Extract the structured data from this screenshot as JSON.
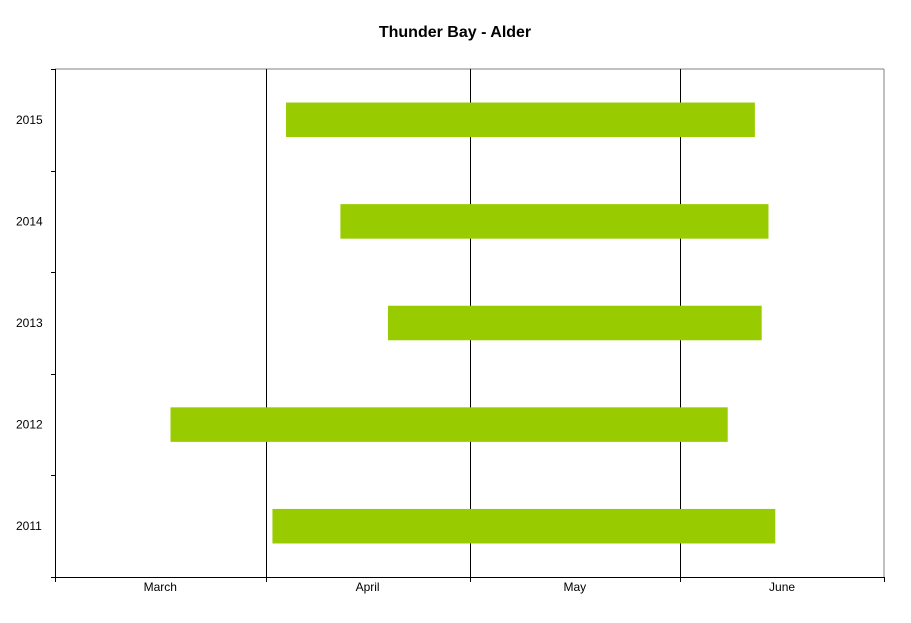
{
  "chart_data": {
    "type": "bar",
    "orientation": "horizontal-range",
    "title": "Thunder Bay - Alder",
    "xlabel": "",
    "ylabel": "",
    "x_ticks": [
      "March",
      "April",
      "May",
      "June"
    ],
    "categories": [
      "2015",
      "2014",
      "2013",
      "2012",
      "2011"
    ],
    "xlim": [
      "March 1",
      "July 1"
    ],
    "series": [
      {
        "values": [
          {
            "category": "2015",
            "start": "April 4",
            "end": "June 12"
          },
          {
            "category": "2014",
            "start": "April 12",
            "end": "June 14"
          },
          {
            "category": "2013",
            "start": "April 19",
            "end": "June 13"
          },
          {
            "category": "2012",
            "start": "March 18",
            "end": "June 8"
          },
          {
            "category": "2011",
            "start": "April 2",
            "end": "June 15"
          }
        ]
      }
    ],
    "grid": "vertical gridlines at month boundaries",
    "legend": "none",
    "colors": {
      "bar": "#99cc00",
      "axis": "#000000",
      "frame": "#808080",
      "background": "#ffffff"
    }
  }
}
